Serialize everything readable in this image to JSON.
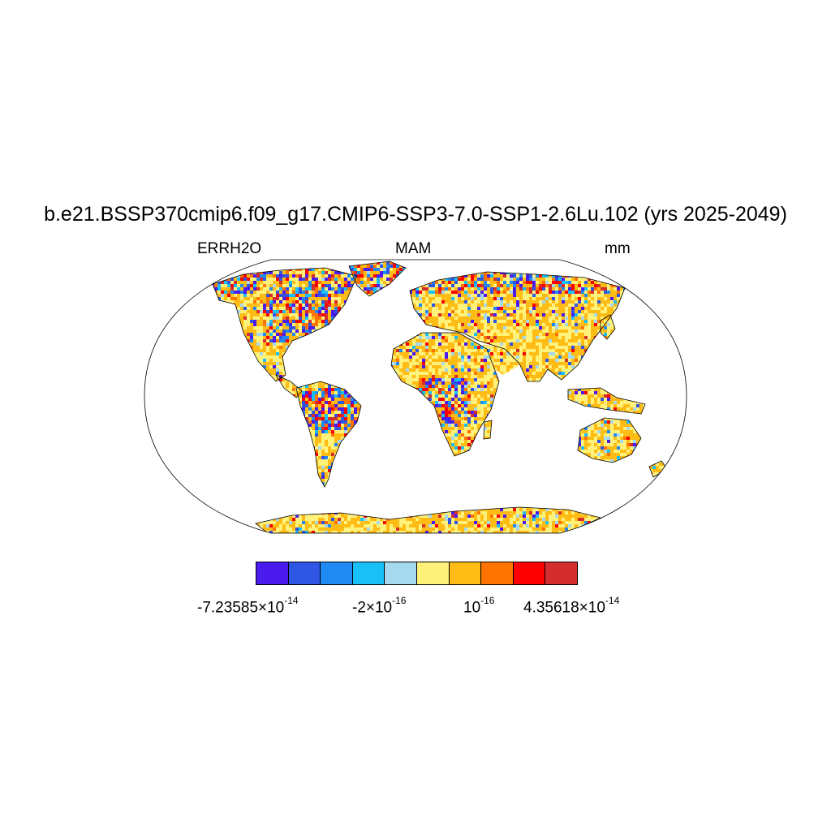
{
  "title": "b.e21.BSSP370cmip6.f09_g17.CMIP6-SSP3-7.0-SSP1-2.6Lu.102 (yrs 2025-2049)",
  "left_label": "ERRH2O",
  "center_label": "MAM",
  "right_label": "mm",
  "colorbar": {
    "colors": [
      "#4a1aef",
      "#2e55e4",
      "#1f8bf2",
      "#19c0f8",
      "#a6d8f0",
      "#fff27a",
      "#ffbc14",
      "#ff7400",
      "#ff0000",
      "#d42d2d"
    ],
    "labels": [
      {
        "mantissa": "-7.23585×10",
        "exponent": "-14"
      },
      {
        "mantissa": "-2×10",
        "exponent": "-16"
      },
      {
        "mantissa": "10",
        "exponent": "-16"
      },
      {
        "mantissa": "4.35618×10",
        "exponent": "-14"
      }
    ]
  },
  "map": {
    "projection": "Robinson",
    "ocean_color": "#ffffff",
    "coastline_color": "#000000"
  }
}
